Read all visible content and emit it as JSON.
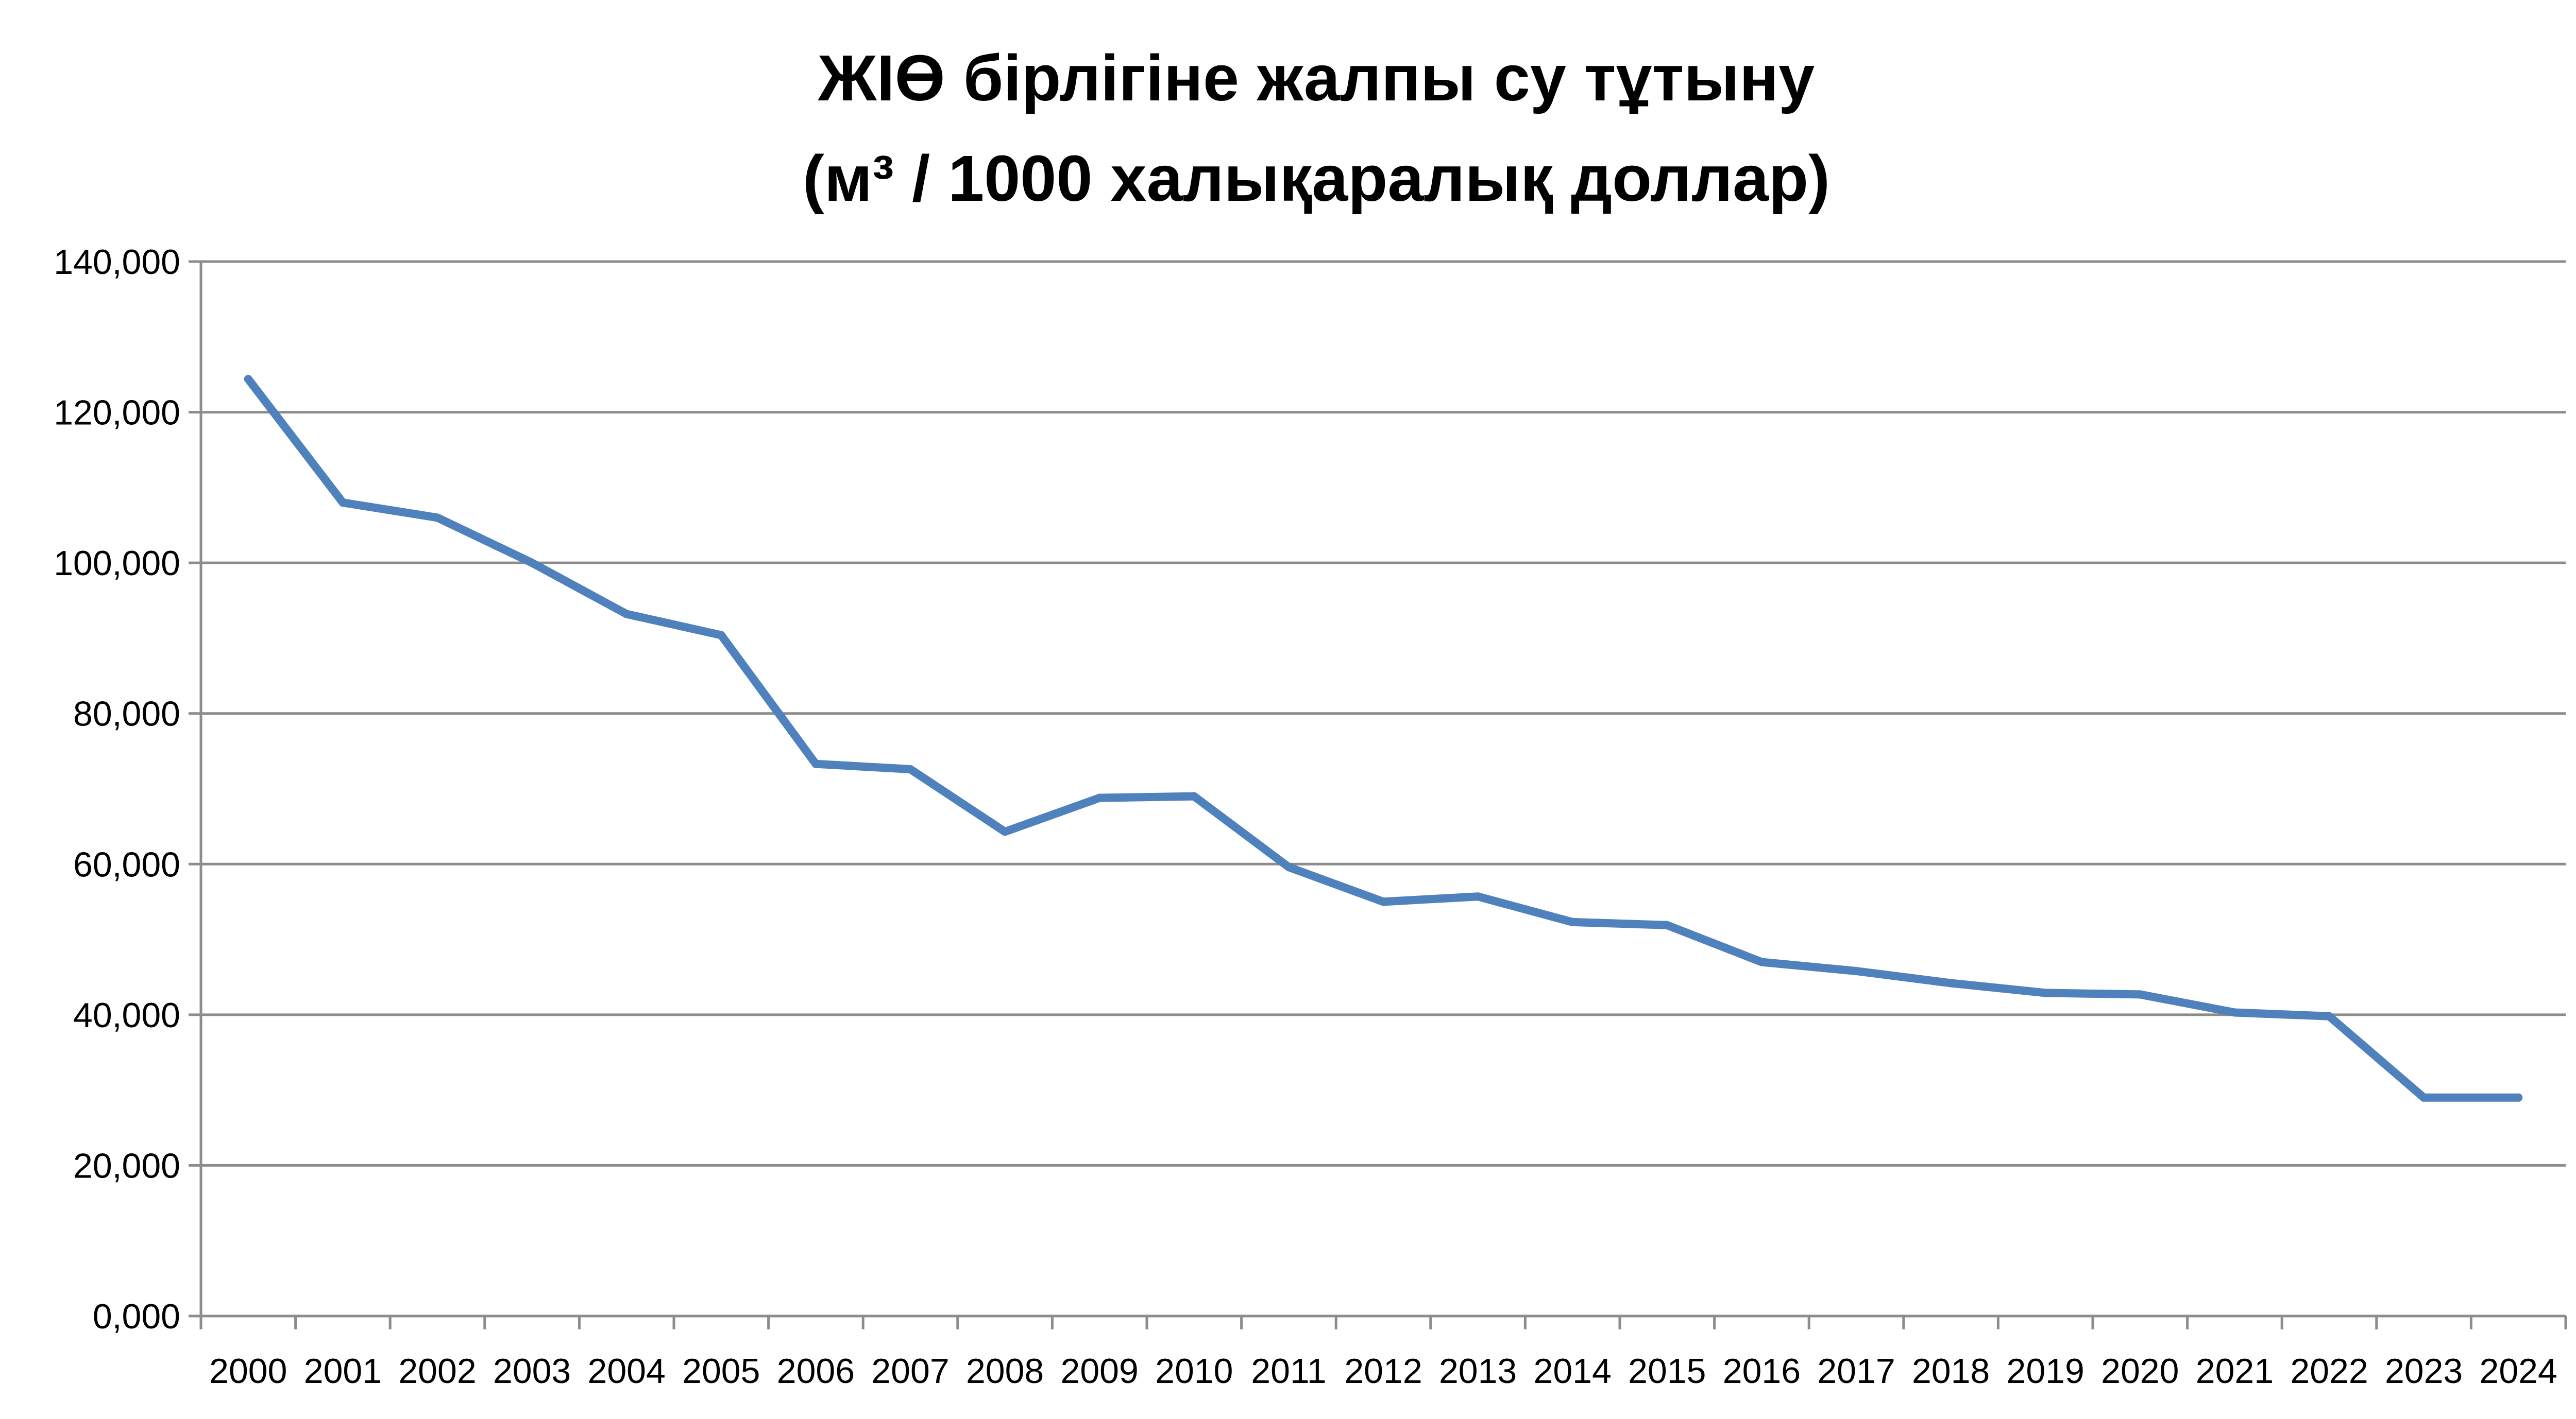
{
  "chart_data": {
    "type": "line",
    "title_lines": [
      "ЖІӨ бірлігіне жалпы су тұтыну",
      "(м³ / 1000 халықаралық доллар)"
    ],
    "xlabel": "",
    "ylabel": "",
    "ylim": [
      0,
      140
    ],
    "y_ticks": [
      0,
      20,
      40,
      60,
      80,
      100,
      120,
      140
    ],
    "y_tick_labels": [
      "0,000",
      "20,000",
      "40,000",
      "60,000",
      "80,000",
      "100,000",
      "120,000",
      "140,000"
    ],
    "grid": true,
    "legend": "none",
    "categories": [
      "2000",
      "2001",
      "2002",
      "2003",
      "2004",
      "2005",
      "2006",
      "2007",
      "2008",
      "2009",
      "2010",
      "2011",
      "2012",
      "2013",
      "2014",
      "2015",
      "2016",
      "2017",
      "2018",
      "2019",
      "2020",
      "2021",
      "2022",
      "2023",
      "2024"
    ],
    "series": [
      {
        "values": [
          124.4,
          108.0,
          106.0,
          100.0,
          93.2,
          90.4,
          73.3,
          72.6,
          64.3,
          68.8,
          69.0,
          59.6,
          55.0,
          55.7,
          52.3,
          51.9,
          47.0,
          45.8,
          44.2,
          42.9,
          42.7,
          40.3,
          39.8,
          29.0,
          29.0
        ]
      }
    ],
    "colors": {
      "line": "#4f81bd",
      "grid": "#8c8c8c",
      "axis": "#8c8c8c"
    }
  }
}
